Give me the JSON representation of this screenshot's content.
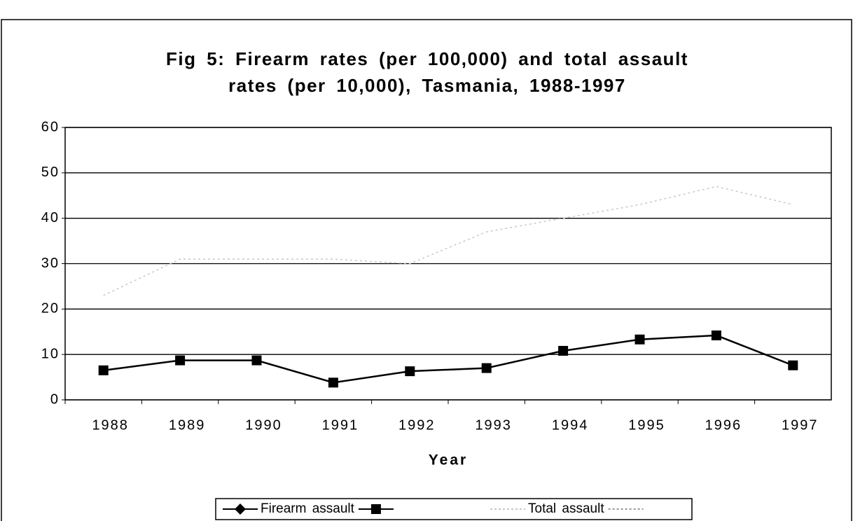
{
  "chart_data": {
    "type": "line",
    "title": [
      "Fig 5: Firearm rates (per 100,000) and total assault",
      "rates (per 10,000), Tasmania, 1988-1997"
    ],
    "x_label": "Year",
    "categories": [
      "1988",
      "1989",
      "1990",
      "1991",
      "1992",
      "1993",
      "1994",
      "1995",
      "1996",
      "1997"
    ],
    "series": [
      {
        "name": "Firearm assault",
        "color": "#000000",
        "values": [
          6.5,
          8.7,
          8.7,
          3.8,
          6.3,
          7.0,
          10.8,
          13.3,
          14.2,
          7.6
        ]
      },
      {
        "name": "Total assault",
        "color": "#c8c8c8",
        "values": [
          23,
          31,
          31,
          31,
          30,
          37,
          40,
          43,
          47,
          43
        ]
      }
    ],
    "ylim": [
      0,
      60
    ],
    "yticks": [
      0,
      10,
      20,
      30,
      40,
      50,
      60
    ],
    "grid": true
  }
}
